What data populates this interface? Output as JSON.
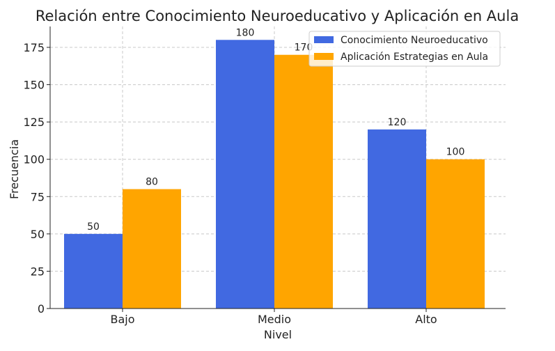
{
  "chart_data": {
    "type": "bar",
    "title": "Relación entre Conocimiento Neuroeducativo y Aplicación en Aula",
    "xlabel": "Nivel",
    "ylabel": "Frecuencia",
    "categories": [
      "Bajo",
      "Medio",
      "Alto"
    ],
    "series": [
      {
        "name": "Conocimiento Neuroeducativo",
        "values": [
          50,
          180,
          120
        ],
        "color": "#4169E1"
      },
      {
        "name": "Aplicación Estrategias en Aula",
        "values": [
          80,
          170,
          100
        ],
        "color": "#FFA500"
      }
    ],
    "ylim": [
      0,
      189
    ],
    "yticks": [
      0,
      25,
      50,
      75,
      100,
      125,
      150,
      175
    ],
    "grid": true,
    "legend": "top-right"
  }
}
